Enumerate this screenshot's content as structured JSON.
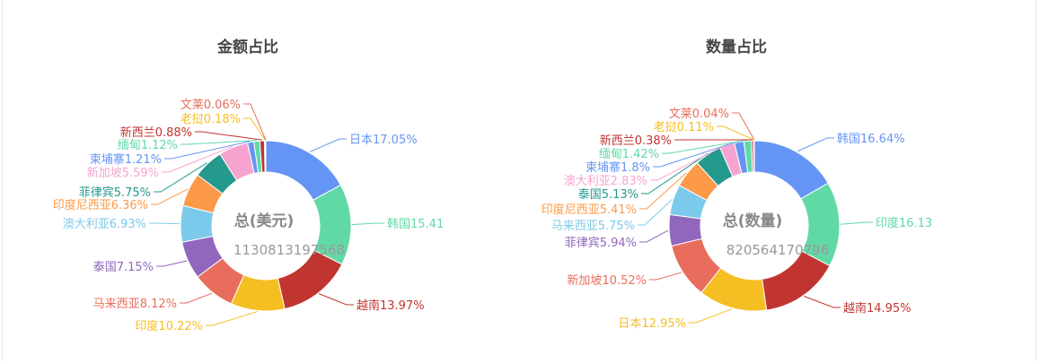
{
  "chart_data": [
    {
      "type": "pie",
      "variant": "donut",
      "title": "金额占比",
      "center_label": "总(美元)",
      "center_value": "1130813197568",
      "slices": [
        {
          "name": "日本",
          "value": 17.05,
          "label": "日本17.05%",
          "color": "#6595f4"
        },
        {
          "name": "韩国",
          "value": 15.41,
          "label": "韩国15.41",
          "color": "#61d9a7"
        },
        {
          "name": "越南",
          "value": 13.97,
          "label": "越南13.97%",
          "color": "#c13531"
        },
        {
          "name": "印度",
          "value": 10.22,
          "label": "印度10.22%",
          "color": "#f5be22"
        },
        {
          "name": "马来西亚",
          "value": 8.12,
          "label": "马来西亚8.12%",
          "color": "#e96d5c"
        },
        {
          "name": "泰国",
          "value": 7.15,
          "label": "泰国7.15%",
          "color": "#9167bd"
        },
        {
          "name": "澳大利亚",
          "value": 6.93,
          "label": "澳大利亚6.93%",
          "color": "#7ccaeb"
        },
        {
          "name": "印度尼西亚",
          "value": 6.36,
          "label": "印度尼西亚6.36%",
          "color": "#fc9a4a"
        },
        {
          "name": "菲律宾",
          "value": 5.75,
          "label": "菲律宾5.75%",
          "color": "#24998e"
        },
        {
          "name": "新加坡",
          "value": 5.59,
          "label": "新加坡5.59%",
          "color": "#f7a4d0"
        },
        {
          "name": "柬埔寨",
          "value": 1.21,
          "label": "柬埔寨1.21%",
          "color": "#6595f4"
        },
        {
          "name": "缅甸",
          "value": 1.12,
          "label": "缅甸1.12%",
          "color": "#61d9a7"
        },
        {
          "name": "新西兰",
          "value": 0.88,
          "label": "新西兰0.88%",
          "color": "#c13531"
        },
        {
          "name": "老挝",
          "value": 0.18,
          "label": "老挝0.18%",
          "color": "#f5be22"
        },
        {
          "name": "文莱",
          "value": 0.06,
          "label": "文莱0.06%",
          "color": "#e96d5c"
        }
      ]
    },
    {
      "type": "pie",
      "variant": "donut",
      "title": "数量占比",
      "center_label": "总(数量)",
      "center_value": "820564170796",
      "slices": [
        {
          "name": "韩国",
          "value": 16.64,
          "label": "韩国16.64%",
          "color": "#6595f4"
        },
        {
          "name": "印度",
          "value": 16.13,
          "label": "印度16.13",
          "color": "#61d9a7"
        },
        {
          "name": "越南",
          "value": 14.95,
          "label": "越南14.95%",
          "color": "#c13531"
        },
        {
          "name": "日本",
          "value": 12.95,
          "label": "日本12.95%",
          "color": "#f5be22"
        },
        {
          "name": "新加坡",
          "value": 10.52,
          "label": "新加坡10.52%",
          "color": "#e96d5c"
        },
        {
          "name": "菲律宾",
          "value": 5.94,
          "label": "菲律宾5.94%",
          "color": "#9167bd"
        },
        {
          "name": "马来西亚",
          "value": 5.75,
          "label": "马来西亚5.75%",
          "color": "#7ccaeb"
        },
        {
          "name": "印度尼西亚",
          "value": 5.41,
          "label": "印度尼西亚5.41%",
          "color": "#fc9a4a"
        },
        {
          "name": "泰国",
          "value": 5.13,
          "label": "泰国5.13%",
          "color": "#24998e"
        },
        {
          "name": "澳大利亚",
          "value": 2.83,
          "label": "澳大利亚2.83%",
          "color": "#f7a4d0"
        },
        {
          "name": "柬埔寨",
          "value": 1.8,
          "label": "柬埔寨1.8%",
          "color": "#6595f4"
        },
        {
          "name": "缅甸",
          "value": 1.42,
          "label": "缅甸1.42%",
          "color": "#61d9a7"
        },
        {
          "name": "新西兰",
          "value": 0.38,
          "label": "新西兰0.38%",
          "color": "#c13531"
        },
        {
          "name": "老挝",
          "value": 0.11,
          "label": "老挝0.11%",
          "color": "#f5be22"
        },
        {
          "name": "文莱",
          "value": 0.04,
          "label": "文莱0.04%",
          "color": "#e96d5c"
        }
      ]
    }
  ]
}
